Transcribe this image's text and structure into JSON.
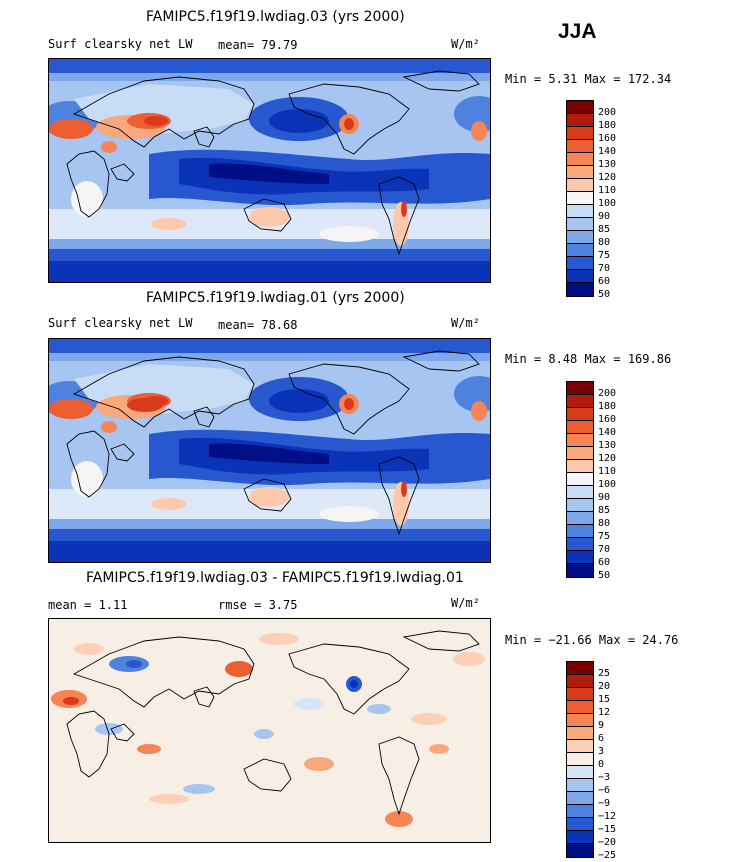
{
  "season": "JJA",
  "units": "W/m²",
  "panels": [
    {
      "title": "FAMIPC5.f19f19.lwdiag.03 (yrs 2000)",
      "variable": "Surf clearsky net LW",
      "stat1": "mean=  79.79",
      "stat2": "",
      "minmax": "Min =   5.31 Max = 172.34",
      "palette": "abs",
      "levels": [
        "200",
        "180",
        "160",
        "140",
        "130",
        "120",
        "110",
        "100",
        "90",
        "85",
        "80",
        "75",
        "70",
        "60",
        "50"
      ]
    },
    {
      "title": "FAMIPC5.f19f19.lwdiag.01 (yrs 2000)",
      "variable": "Surf clearsky net LW",
      "stat1": "mean=  78.68",
      "stat2": "",
      "minmax": "Min =   8.48 Max = 169.86",
      "palette": "abs",
      "levels": [
        "200",
        "180",
        "160",
        "140",
        "130",
        "120",
        "110",
        "100",
        "90",
        "85",
        "80",
        "75",
        "70",
        "60",
        "50"
      ]
    },
    {
      "title": "FAMIPC5.f19f19.lwdiag.03 - FAMIPC5.f19f19.lwdiag.01",
      "variable": "",
      "stat1": "mean =   1.11",
      "stat2": "rmse =   3.75",
      "minmax": "Min = −21.66 Max =  24.76",
      "palette": "diff",
      "levels": [
        "25",
        "20",
        "15",
        "12",
        "9",
        "6",
        "3",
        "0",
        "−3",
        "−6",
        "−9",
        "−12",
        "−15",
        "−20",
        "−25"
      ]
    }
  ],
  "colors": {
    "abs": [
      "#7a0000",
      "#b01c0c",
      "#d93a1a",
      "#ee5e33",
      "#f68455",
      "#f9a77d",
      "#fcc9ad",
      "#f5f5f5",
      "#c9dcf6",
      "#a6c5f0",
      "#7ea8ea",
      "#4f82de",
      "#2858d0",
      "#0b33b8",
      "#000f86"
    ],
    "diff": [
      "#7a0000",
      "#b01c0c",
      "#d93a1a",
      "#ee5e33",
      "#f68455",
      "#f9a77d",
      "#fcd0b6",
      "#f7efe6",
      "#d6e4f8",
      "#a6c5f0",
      "#7ea8ea",
      "#4f82de",
      "#2858d0",
      "#0b33b8",
      "#000f86"
    ]
  }
}
